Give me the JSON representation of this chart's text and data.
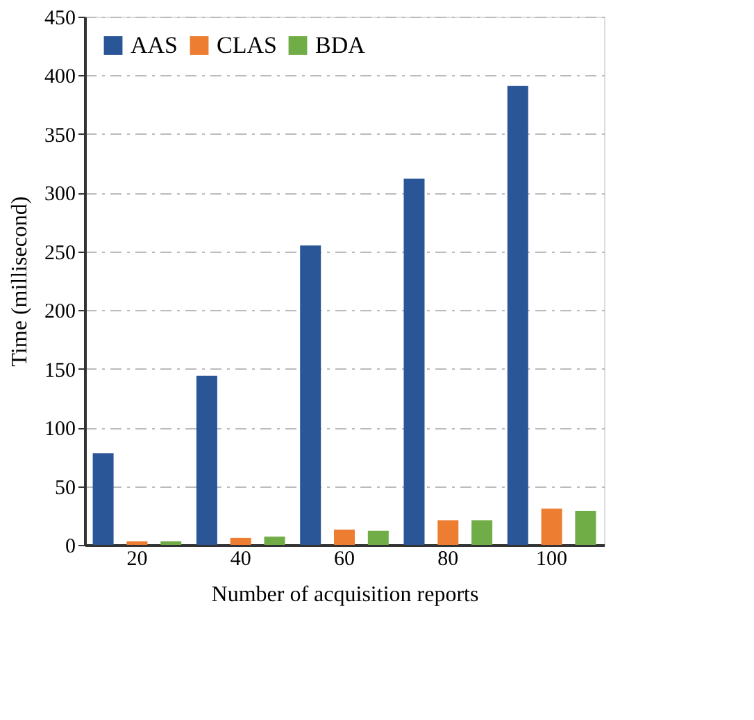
{
  "chart_data": {
    "type": "bar",
    "xlabel": "Number of acquisition reports",
    "ylabel": "Time (millisecond)",
    "categories": [
      "20",
      "40",
      "60",
      "80",
      "100"
    ],
    "series": [
      {
        "name": "AAS",
        "color": "#2a5597",
        "values": [
          78,
          144,
          255,
          312,
          391
        ]
      },
      {
        "name": "CLAS",
        "color": "#ed7d31",
        "values": [
          3,
          6,
          13,
          21,
          31
        ]
      },
      {
        "name": "BDA",
        "color": "#70ad47",
        "values": [
          3,
          7,
          12,
          21,
          29
        ]
      }
    ],
    "ylim": [
      0,
      450
    ],
    "yticks": [
      0,
      50,
      100,
      150,
      200,
      250,
      300,
      350,
      400,
      450
    ],
    "grid": "y",
    "legend": "top left"
  }
}
